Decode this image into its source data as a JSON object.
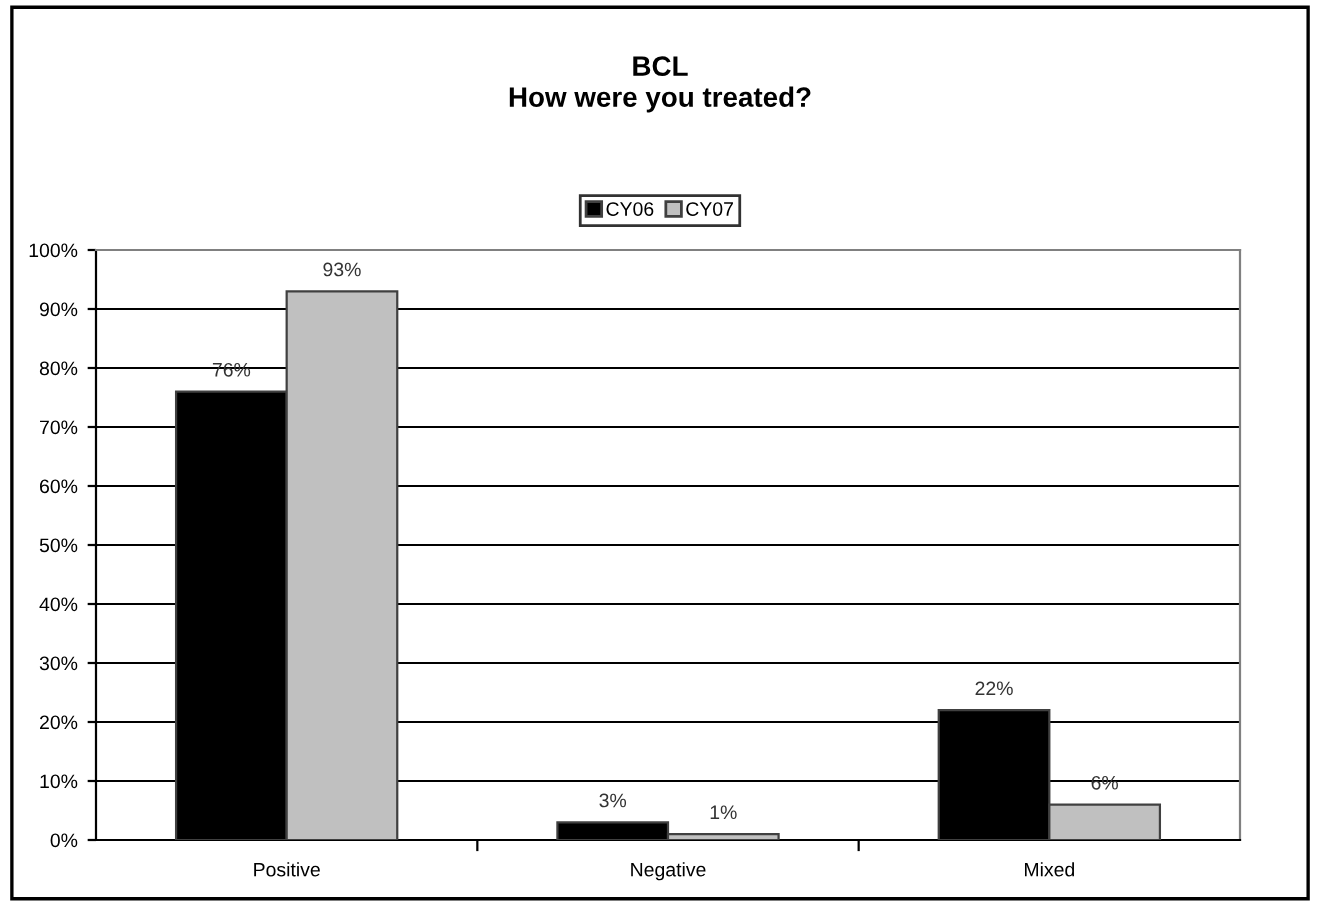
{
  "chart_data": {
    "type": "bar",
    "title": "BCL\nHow were you treated?",
    "categories": [
      "Positive",
      "Negative",
      "Mixed"
    ],
    "series": [
      {
        "name": "CY06",
        "color": "#000000",
        "values": [
          76,
          3,
          22
        ],
        "value_labels": [
          "76%",
          "3%",
          "22%"
        ]
      },
      {
        "name": "CY07",
        "color": "#c0c0c0",
        "values": [
          93,
          1,
          6
        ],
        "value_labels": [
          "93%",
          "1%",
          "6%"
        ]
      }
    ],
    "ylim": [
      0,
      100
    ],
    "yticks": [
      {
        "value": 0,
        "label": "0%"
      },
      {
        "value": 10,
        "label": "10%"
      },
      {
        "value": 20,
        "label": "20%"
      },
      {
        "value": 30,
        "label": "30%"
      },
      {
        "value": 40,
        "label": "40%"
      },
      {
        "value": 50,
        "label": "50%"
      },
      {
        "value": 60,
        "label": "60%"
      },
      {
        "value": 70,
        "label": "70%"
      },
      {
        "value": 80,
        "label": "80%"
      },
      {
        "value": 90,
        "label": "90%"
      },
      {
        "value": 100,
        "label": "100%"
      }
    ],
    "grid": "y",
    "legend": "top"
  }
}
